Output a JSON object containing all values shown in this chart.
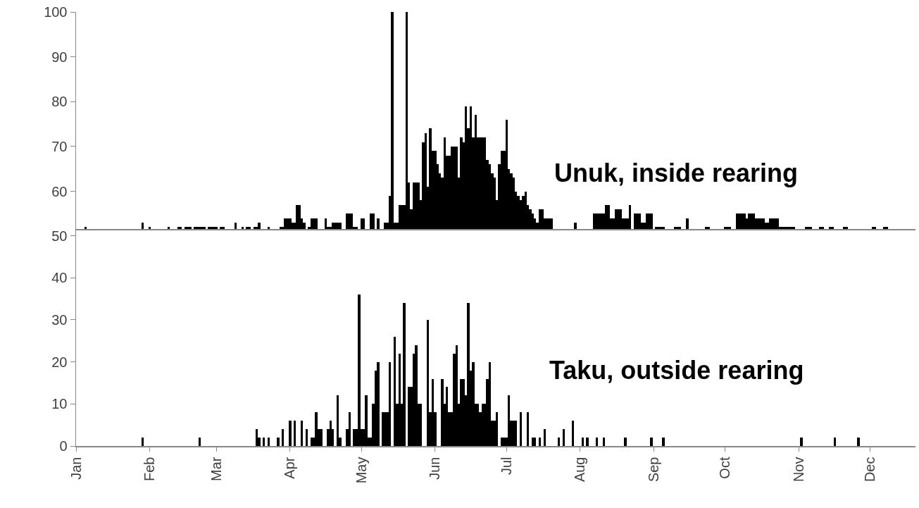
{
  "chart_data": [
    {
      "type": "bar",
      "color": "#000000",
      "tick_labels": "y",
      "grid": false,
      "annotations": [
        "Unuk, inside rearing"
      ],
      "xlim": [
        "--01-01",
        "--12-20"
      ],
      "ylim": [
        51.6,
        100
      ],
      "yticks": [
        60,
        70,
        80,
        90,
        100
      ],
      "x": [
        "--01-05",
        "--01-29",
        "--02-01",
        "--02-09",
        "--02-13",
        "--02-14",
        "--02-16",
        "--02-17",
        "--02-18",
        "--02-20",
        "--02-21",
        "--02-22",
        "--02-23",
        "--02-24",
        "--02-26",
        "--02-27",
        "--02-28",
        "--03-01",
        "--03-03",
        "--03-04",
        "--03-09",
        "--03-12",
        "--03-14",
        "--03-15",
        "--03-17",
        "--03-18",
        "--03-19",
        "--03-23",
        "--03-28",
        "--03-29",
        "--03-30",
        "--03-31",
        "--04-01",
        "--04-02",
        "--04-03",
        "--04-04",
        "--04-05",
        "--04-06",
        "--04-07",
        "--04-09",
        "--04-10",
        "--04-11",
        "--04-12",
        "--04-16",
        "--04-17",
        "--04-18",
        "--04-19",
        "--04-20",
        "--04-21",
        "--04-22",
        "--04-25",
        "--04-26",
        "--04-27",
        "--04-28",
        "--04-29",
        "--05-01",
        "--05-02",
        "--05-05",
        "--05-06",
        "--05-08",
        "--05-11",
        "--05-12",
        "--05-13",
        "--05-14",
        "--05-15",
        "--05-16",
        "--05-17",
        "--05-18",
        "--05-19",
        "--05-20",
        "--05-21",
        "--05-22",
        "--05-23",
        "--05-24",
        "--05-25",
        "--05-26",
        "--05-27",
        "--05-28",
        "--05-29",
        "--05-30",
        "--05-31",
        "--06-01",
        "--06-02",
        "--06-03",
        "--06-04",
        "--06-05",
        "--06-06",
        "--06-07",
        "--06-08",
        "--06-09",
        "--06-10",
        "--06-11",
        "--06-12",
        "--06-13",
        "--06-14",
        "--06-15",
        "--06-16",
        "--06-17",
        "--06-18",
        "--06-19",
        "--06-20",
        "--06-21",
        "--06-22",
        "--06-23",
        "--06-24",
        "--06-25",
        "--06-26",
        "--06-27",
        "--06-28",
        "--06-29",
        "--06-30",
        "--07-01",
        "--07-02",
        "--07-03",
        "--07-04",
        "--07-05",
        "--07-06",
        "--07-07",
        "--07-08",
        "--07-09",
        "--07-10",
        "--07-11",
        "--07-12",
        "--07-13",
        "--07-14",
        "--07-15",
        "--07-16",
        "--07-17",
        "--07-18",
        "--07-19",
        "--07-20",
        "--07-30",
        "--08-07",
        "--08-08",
        "--08-09",
        "--08-10",
        "--08-11",
        "--08-12",
        "--08-13",
        "--08-14",
        "--08-15",
        "--08-16",
        "--08-17",
        "--08-18",
        "--08-19",
        "--08-20",
        "--08-21",
        "--08-22",
        "--08-24",
        "--08-25",
        "--08-26",
        "--08-27",
        "--08-28",
        "--08-29",
        "--08-30",
        "--08-31",
        "--09-02",
        "--09-03",
        "--09-04",
        "--09-05",
        "--09-10",
        "--09-11",
        "--09-12",
        "--09-15",
        "--09-23",
        "--09-24",
        "--10-01",
        "--10-02",
        "--10-03",
        "--10-06",
        "--10-07",
        "--10-08",
        "--10-09",
        "--10-10",
        "--10-11",
        "--10-12",
        "--10-13",
        "--10-14",
        "--10-15",
        "--10-16",
        "--10-17",
        "--10-18",
        "--10-19",
        "--10-20",
        "--10-21",
        "--10-22",
        "--10-23",
        "--10-24",
        "--10-25",
        "--10-26",
        "--10-27",
        "--10-28",
        "--10-29",
        "--10-30",
        "--11-04",
        "--11-05",
        "--11-06",
        "--11-10",
        "--11-11",
        "--11-14",
        "--11-15",
        "--11-20",
        "--11-21",
        "--12-02",
        "--12-03",
        "--12-07",
        "--12-08"
      ],
      "values": [
        52,
        53,
        52,
        52,
        52,
        52,
        52,
        52,
        52,
        52,
        52,
        52,
        52,
        52,
        52,
        52,
        52,
        52,
        52,
        52,
        53,
        52,
        52,
        52,
        52,
        52,
        53,
        52,
        52,
        52,
        54,
        54,
        54,
        53,
        53,
        57,
        57,
        54,
        53,
        52,
        54,
        54,
        54,
        54,
        52,
        52,
        53,
        53,
        53,
        53,
        55,
        55,
        55,
        52,
        52,
        54,
        54,
        55,
        55,
        54,
        53,
        53,
        59,
        100,
        53,
        53,
        57,
        57,
        57,
        100,
        62,
        56,
        62,
        62,
        62,
        58,
        71,
        73,
        61,
        74,
        69,
        69,
        66,
        64,
        63,
        72,
        68,
        68,
        70,
        70,
        70,
        63,
        72,
        71,
        79,
        74,
        79,
        72,
        77,
        72,
        72,
        72,
        72,
        67,
        66,
        64,
        63,
        58,
        66,
        69,
        69,
        76,
        65,
        64,
        63,
        60,
        59,
        58,
        59,
        60,
        57,
        56,
        55,
        54,
        53,
        56,
        56,
        54,
        54,
        54,
        54,
        53,
        55,
        55,
        55,
        55,
        55,
        57,
        57,
        54,
        54,
        56,
        56,
        56,
        54,
        54,
        54,
        57,
        55,
        55,
        55,
        53,
        53,
        55,
        55,
        55,
        52,
        52,
        52,
        52,
        52,
        52,
        52,
        54,
        52,
        52,
        52,
        52,
        52,
        55,
        55,
        55,
        55,
        54,
        55,
        55,
        55,
        54,
        54,
        54,
        54,
        53,
        53,
        54,
        54,
        54,
        54,
        52,
        52,
        52,
        52,
        52,
        52,
        52,
        52,
        52,
        52,
        52,
        52,
        52,
        52,
        52,
        52,
        52,
        52,
        52,
        52
      ]
    },
    {
      "type": "bar",
      "color": "#000000",
      "grid": false,
      "annotations": [
        "Taku, outside rearing"
      ],
      "xlim": [
        "--01-01",
        "--12-20"
      ],
      "xticks": [
        {
          "value": "--01-01",
          "label": "Jan"
        },
        {
          "value": "--02-01",
          "label": "Feb"
        },
        {
          "value": "--03-01",
          "label": "Mar"
        },
        {
          "value": "--04-01",
          "label": "Apr"
        },
        {
          "value": "--05-01",
          "label": "May"
        },
        {
          "value": "--06-01",
          "label": "Jun"
        },
        {
          "value": "--07-01",
          "label": "Jul"
        },
        {
          "value": "--08-01",
          "label": "Aug"
        },
        {
          "value": "--09-01",
          "label": "Sep"
        },
        {
          "value": "--10-01",
          "label": "Oct"
        },
        {
          "value": "--11-01",
          "label": "Nov"
        },
        {
          "value": "--12-01",
          "label": "Dec"
        }
      ],
      "ylim": [
        0,
        51.6
      ],
      "yticks": [
        0,
        10,
        20,
        30,
        40,
        50
      ],
      "x": [
        "--01-29",
        "--02-22",
        "--03-18",
        "--03-19",
        "--03-21",
        "--03-23",
        "--03-27",
        "--03-29",
        "--04-01",
        "--04-03",
        "--04-06",
        "--04-08",
        "--04-10",
        "--04-11",
        "--04-12",
        "--04-13",
        "--04-14",
        "--04-17",
        "--04-18",
        "--04-19",
        "--04-21",
        "--04-22",
        "--04-25",
        "--04-26",
        "--04-28",
        "--04-29",
        "--04-30",
        "--05-01",
        "--05-02",
        "--05-03",
        "--05-04",
        "--05-05",
        "--05-06",
        "--05-07",
        "--05-08",
        "--05-10",
        "--05-11",
        "--05-12",
        "--05-13",
        "--05-14",
        "--05-15",
        "--05-16",
        "--05-17",
        "--05-18",
        "--05-19",
        "--05-20",
        "--05-21",
        "--05-22",
        "--05-23",
        "--05-24",
        "--05-25",
        "--05-26",
        "--05-27",
        "--05-28",
        "--05-29",
        "--05-30",
        "--05-31",
        "--06-01",
        "--06-02",
        "--06-03",
        "--06-04",
        "--06-05",
        "--06-06",
        "--06-07",
        "--06-08",
        "--06-09",
        "--06-10",
        "--06-11",
        "--06-12",
        "--06-13",
        "--06-14",
        "--06-15",
        "--06-16",
        "--06-17",
        "--06-18",
        "--06-19",
        "--06-20",
        "--06-21",
        "--06-22",
        "--06-23",
        "--06-24",
        "--06-25",
        "--06-26",
        "--06-27",
        "--06-29",
        "--06-30",
        "--07-01",
        "--07-02",
        "--07-03",
        "--07-04",
        "--07-05",
        "--07-07",
        "--07-10",
        "--07-12",
        "--07-13",
        "--07-15",
        "--07-17",
        "--07-23",
        "--07-25",
        "--07-29",
        "--08-02",
        "--08-04",
        "--08-08",
        "--08-11",
        "--08-20",
        "--08-31",
        "--09-05",
        "--11-02",
        "--11-16",
        "--11-26"
      ],
      "values": [
        2,
        2,
        4,
        2,
        2,
        2,
        2,
        4,
        6,
        6,
        6,
        4,
        2,
        2,
        8,
        4,
        4,
        4,
        6,
        4,
        12,
        2,
        4,
        8,
        4,
        4,
        36,
        4,
        4,
        12,
        2,
        2,
        10,
        18,
        20,
        8,
        8,
        8,
        20,
        null,
        26,
        10,
        22,
        10,
        34,
        null,
        14,
        14,
        22,
        24,
        10,
        10,
        null,
        null,
        30,
        8,
        16,
        8,
        null,
        null,
        16,
        10,
        14,
        8,
        8,
        22,
        24,
        10,
        16,
        16,
        12,
        34,
        18,
        20,
        10,
        10,
        8,
        10,
        10,
        16,
        20,
        6,
        6,
        8,
        2,
        2,
        2,
        12,
        6,
        6,
        6,
        8,
        8,
        2,
        2,
        2,
        4,
        2,
        4,
        6,
        2,
        2,
        2,
        2,
        2,
        2,
        2,
        2,
        2,
        2
      ]
    }
  ]
}
